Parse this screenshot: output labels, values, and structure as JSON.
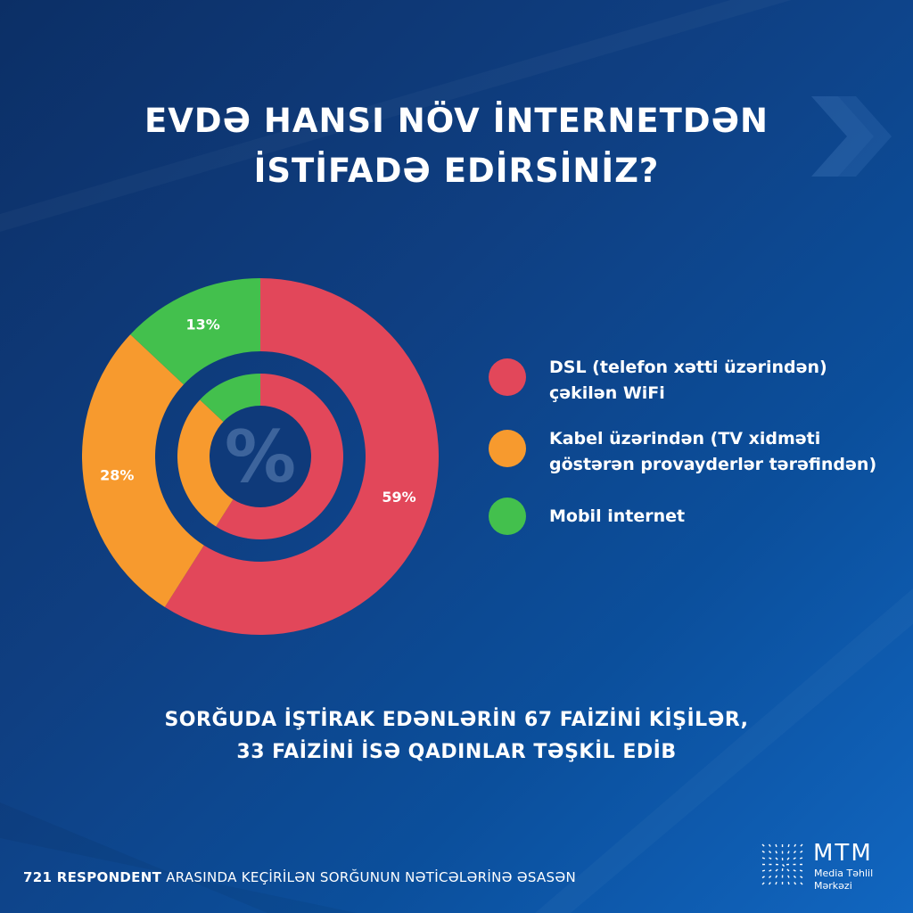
{
  "title": {
    "line1": "EVDƏ HANSI NÖV İNTERNETDƏN",
    "line2": "İSTİFADƏ EDİRSİNİZ?"
  },
  "center_symbol": "%",
  "colors": {
    "dsl": "#e2475a",
    "cable": "#f79a2e",
    "mobile": "#43c04d",
    "ring_gap": "#0f3a7a"
  },
  "chart_data": {
    "type": "pie",
    "variant": "donut",
    "categories": [
      "DSL (telefon xətti üzərindən) çəkilən WiFi",
      "Kabel üzərindən (TV xidməti göstərən provayderlər tərəfindən)",
      "Mobil internet"
    ],
    "values": [
      59,
      28,
      13
    ],
    "labels": [
      "59%",
      "28%",
      "13%"
    ],
    "legend_placement": "right"
  },
  "legend": [
    {
      "line1": "DSL (telefon xətti üzərindən)",
      "line2": "çəkilən WiFi"
    },
    {
      "line1": "Kabel üzərindən (TV xidməti",
      "line2": "göstərən provayderlər tərəfindən)"
    },
    {
      "line1": "Mobil internet",
      "line2": ""
    }
  ],
  "note": {
    "line1": "SORĞUDA İŞTİRAK EDƏNLƏRİN 67 FAİZİNİ KİŞİLƏR,",
    "line2": "33 FAİZİNİ İSƏ QADINLAR TƏŞKİL EDİB"
  },
  "footer": {
    "bold": "721 RESPONDENT",
    "rest": " ARASINDA KEÇİRİLƏN SORĞUNUN NƏTİCƏLƏRİNƏ ƏSASƏN"
  },
  "logo": {
    "name": "MTM",
    "sub1": "Media Təhlil",
    "sub2": "Mərkəzi"
  }
}
